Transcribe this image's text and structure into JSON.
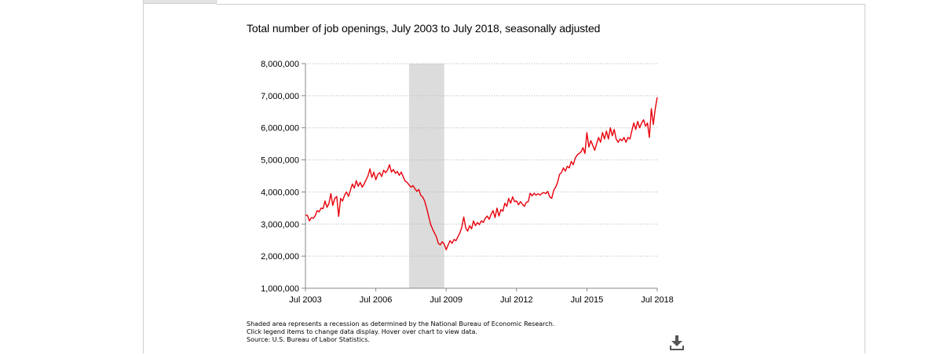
{
  "chart_data": {
    "type": "line",
    "title": "Total number of job openings, July 2003 to July 2018, seasonally adjusted",
    "xlabel": "",
    "ylabel": "",
    "x_range": [
      "Jul 2003",
      "Jul 2018"
    ],
    "ylim": [
      1000000,
      8000000
    ],
    "y_ticks": [
      1000000,
      2000000,
      3000000,
      4000000,
      5000000,
      6000000,
      7000000,
      8000000
    ],
    "y_tick_labels": [
      "1,000,000",
      "2,000,000",
      "3,000,000",
      "4,000,000",
      "5,000,000",
      "6,000,000",
      "7,000,000",
      "8,000,000"
    ],
    "x_tick_labels": [
      "Jul 2003",
      "Jul 2006",
      "Jul 2009",
      "Jul 2012",
      "Jul 2015",
      "Jul 2018"
    ],
    "grid": "horizontal dotted",
    "recession_shading": {
      "start": "Dec 2007",
      "end": "Jun 2009",
      "color": "#dcdcdc"
    },
    "series": [
      {
        "color": "#e8000b",
        "points": [
          [
            "2003-07",
            3280000
          ],
          [
            "2003-08",
            3270000
          ],
          [
            "2003-09",
            3100000
          ],
          [
            "2003-10",
            3200000
          ],
          [
            "2003-11",
            3180000
          ],
          [
            "2003-12",
            3260000
          ],
          [
            "2004-01",
            3420000
          ],
          [
            "2004-02",
            3380000
          ],
          [
            "2004-03",
            3500000
          ],
          [
            "2004-04",
            3480000
          ],
          [
            "2004-05",
            3720000
          ],
          [
            "2004-06",
            3520000
          ],
          [
            "2004-07",
            3640000
          ],
          [
            "2004-08",
            3950000
          ],
          [
            "2004-09",
            3580000
          ],
          [
            "2004-10",
            3800000
          ],
          [
            "2004-11",
            3860000
          ],
          [
            "2004-12",
            3240000
          ],
          [
            "2005-01",
            3800000
          ],
          [
            "2005-02",
            3720000
          ],
          [
            "2005-03",
            3900000
          ],
          [
            "2005-04",
            4000000
          ],
          [
            "2005-05",
            3860000
          ],
          [
            "2005-06",
            4050000
          ],
          [
            "2005-07",
            4250000
          ],
          [
            "2005-08",
            4120000
          ],
          [
            "2005-09",
            4350000
          ],
          [
            "2005-10",
            4180000
          ],
          [
            "2005-11",
            4300000
          ],
          [
            "2005-12",
            4150000
          ],
          [
            "2006-01",
            4250000
          ],
          [
            "2006-02",
            4380000
          ],
          [
            "2006-03",
            4500000
          ],
          [
            "2006-04",
            4720000
          ],
          [
            "2006-05",
            4450000
          ],
          [
            "2006-06",
            4620000
          ],
          [
            "2006-07",
            4380000
          ],
          [
            "2006-08",
            4550000
          ],
          [
            "2006-09",
            4600000
          ],
          [
            "2006-10",
            4480000
          ],
          [
            "2006-11",
            4680000
          ],
          [
            "2006-12",
            4600000
          ],
          [
            "2007-01",
            4680000
          ],
          [
            "2007-02",
            4850000
          ],
          [
            "2007-03",
            4620000
          ],
          [
            "2007-04",
            4700000
          ],
          [
            "2007-05",
            4580000
          ],
          [
            "2007-06",
            4640000
          ],
          [
            "2007-07",
            4520000
          ],
          [
            "2007-08",
            4620000
          ],
          [
            "2007-09",
            4480000
          ],
          [
            "2007-10",
            4340000
          ],
          [
            "2007-11",
            4300000
          ],
          [
            "2007-12",
            4220000
          ],
          [
            "2008-01",
            4150000
          ],
          [
            "2008-02",
            4200000
          ],
          [
            "2008-03",
            4100000
          ],
          [
            "2008-04",
            4020000
          ],
          [
            "2008-05",
            4080000
          ],
          [
            "2008-06",
            3900000
          ],
          [
            "2008-07",
            3840000
          ],
          [
            "2008-08",
            3720000
          ],
          [
            "2008-09",
            3500000
          ],
          [
            "2008-10",
            3250000
          ],
          [
            "2008-11",
            3000000
          ],
          [
            "2008-12",
            2850000
          ],
          [
            "2009-01",
            2720000
          ],
          [
            "2009-02",
            2600000
          ],
          [
            "2009-03",
            2400000
          ],
          [
            "2009-04",
            2350000
          ],
          [
            "2009-05",
            2450000
          ],
          [
            "2009-06",
            2380000
          ],
          [
            "2009-07",
            2200000
          ],
          [
            "2009-08",
            2350000
          ],
          [
            "2009-09",
            2480000
          ],
          [
            "2009-10",
            2400000
          ],
          [
            "2009-11",
            2520000
          ],
          [
            "2009-12",
            2480000
          ],
          [
            "2010-01",
            2600000
          ],
          [
            "2010-02",
            2720000
          ],
          [
            "2010-03",
            2900000
          ],
          [
            "2010-04",
            3220000
          ],
          [
            "2010-05",
            2880000
          ],
          [
            "2010-06",
            2780000
          ],
          [
            "2010-07",
            2950000
          ],
          [
            "2010-08",
            2850000
          ],
          [
            "2010-09",
            3100000
          ],
          [
            "2010-10",
            2950000
          ],
          [
            "2010-11",
            3050000
          ],
          [
            "2010-12",
            2980000
          ],
          [
            "2011-01",
            3100000
          ],
          [
            "2011-02",
            3050000
          ],
          [
            "2011-03",
            3180000
          ],
          [
            "2011-04",
            3250000
          ],
          [
            "2011-05",
            3150000
          ],
          [
            "2011-06",
            3300000
          ],
          [
            "2011-07",
            3420000
          ],
          [
            "2011-08",
            3200000
          ],
          [
            "2011-09",
            3500000
          ],
          [
            "2011-10",
            3250000
          ],
          [
            "2011-11",
            3450000
          ],
          [
            "2011-12",
            3400000
          ],
          [
            "2012-01",
            3650000
          ],
          [
            "2012-02",
            3550000
          ],
          [
            "2012-03",
            3800000
          ],
          [
            "2012-04",
            3650000
          ],
          [
            "2012-05",
            3850000
          ],
          [
            "2012-06",
            3700000
          ],
          [
            "2012-07",
            3720000
          ],
          [
            "2012-08",
            3600000
          ],
          [
            "2012-09",
            3700000
          ],
          [
            "2012-10",
            3620000
          ],
          [
            "2012-11",
            3550000
          ],
          [
            "2012-12",
            3680000
          ],
          [
            "2013-01",
            3700000
          ],
          [
            "2013-02",
            3960000
          ],
          [
            "2013-03",
            3880000
          ],
          [
            "2013-04",
            3960000
          ],
          [
            "2013-05",
            3900000
          ],
          [
            "2013-06",
            3950000
          ],
          [
            "2013-07",
            3900000
          ],
          [
            "2013-08",
            3960000
          ],
          [
            "2013-09",
            3980000
          ],
          [
            "2013-10",
            3950000
          ],
          [
            "2013-11",
            4020000
          ],
          [
            "2013-12",
            3850000
          ],
          [
            "2014-01",
            3800000
          ],
          [
            "2014-02",
            4050000
          ],
          [
            "2014-03",
            4150000
          ],
          [
            "2014-04",
            4300000
          ],
          [
            "2014-05",
            4550000
          ],
          [
            "2014-06",
            4600000
          ],
          [
            "2014-07",
            4750000
          ],
          [
            "2014-08",
            4650000
          ],
          [
            "2014-09",
            4800000
          ],
          [
            "2014-10",
            4750000
          ],
          [
            "2014-11",
            4950000
          ],
          [
            "2014-12",
            4850000
          ],
          [
            "2015-01",
            5050000
          ],
          [
            "2015-02",
            5150000
          ],
          [
            "2015-03",
            5200000
          ],
          [
            "2015-04",
            5250000
          ],
          [
            "2015-05",
            5380000
          ],
          [
            "2015-06",
            5200000
          ],
          [
            "2015-07",
            5850000
          ],
          [
            "2015-08",
            5400000
          ],
          [
            "2015-09",
            5600000
          ],
          [
            "2015-10",
            5450000
          ],
          [
            "2015-11",
            5300000
          ],
          [
            "2015-12",
            5500000
          ],
          [
            "2016-01",
            5700000
          ],
          [
            "2016-02",
            5550000
          ],
          [
            "2016-03",
            5850000
          ],
          [
            "2016-04",
            5650000
          ],
          [
            "2016-05",
            5900000
          ],
          [
            "2016-06",
            5650000
          ],
          [
            "2016-07",
            6000000
          ],
          [
            "2016-08",
            5750000
          ],
          [
            "2016-09",
            5950000
          ],
          [
            "2016-10",
            5650000
          ],
          [
            "2016-11",
            5550000
          ],
          [
            "2016-12",
            5650000
          ],
          [
            "2017-01",
            5600000
          ],
          [
            "2017-02",
            5700000
          ],
          [
            "2017-03",
            5550000
          ],
          [
            "2017-04",
            5700000
          ],
          [
            "2017-05",
            5650000
          ],
          [
            "2017-06",
            5900000
          ],
          [
            "2017-07",
            6150000
          ],
          [
            "2017-08",
            5950000
          ],
          [
            "2017-09",
            6200000
          ],
          [
            "2017-10",
            6000000
          ],
          [
            "2017-11",
            6150000
          ],
          [
            "2017-12",
            6250000
          ],
          [
            "2018-01",
            6050000
          ],
          [
            "2018-02",
            6150000
          ],
          [
            "2018-03",
            5700000
          ],
          [
            "2018-04",
            6600000
          ],
          [
            "2018-05",
            6100000
          ],
          [
            "2018-06",
            6600000
          ],
          [
            "2018-07",
            6950000
          ]
        ]
      }
    ]
  },
  "notes": {
    "line1": "Shaded area represents a recession as determined by the National Bureau of Economic Research.",
    "line2": "Click legend items to change data display. Hover over chart to view data.",
    "line3": "Source: U.S. Bureau of Labor Statistics."
  },
  "icons": {
    "download": "download-icon"
  }
}
